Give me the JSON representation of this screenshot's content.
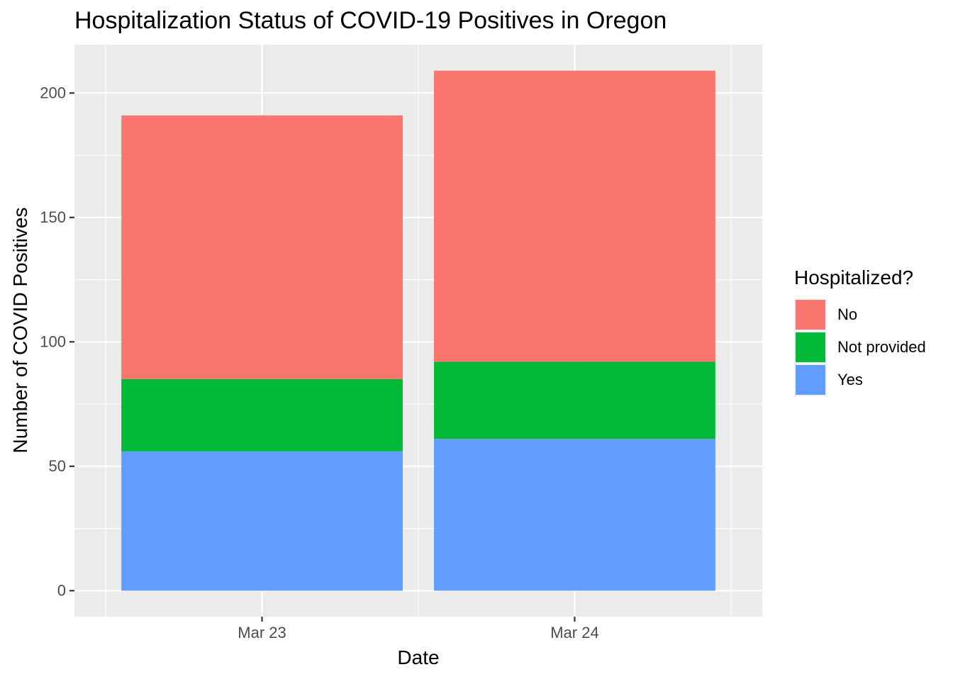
{
  "chart_data": {
    "type": "bar",
    "stacked": true,
    "title": "Hospitalization Status of COVID-19 Positives in Oregon",
    "xlabel": "Date",
    "ylabel": "Number of COVID Positives",
    "categories": [
      "Mar 23",
      "Mar 24"
    ],
    "series": [
      {
        "name": "Yes",
        "values": [
          56,
          61
        ],
        "color": "#619CFF"
      },
      {
        "name": "Not provided",
        "values": [
          29,
          31
        ],
        "color": "#00BA38"
      },
      {
        "name": "No",
        "values": [
          106,
          117
        ],
        "color": "#F8766D"
      }
    ],
    "legend_order": [
      "No",
      "Not provided",
      "Yes"
    ],
    "legend_title": "Hospitalized?",
    "legend_position": "right",
    "ylim": [
      -10.45,
      219.45
    ],
    "yticks": [
      "0",
      "50",
      "100",
      "150",
      "200"
    ],
    "grid": true,
    "panel_background": "#EBEBEB",
    "grid_color": "#FFFFFF"
  }
}
